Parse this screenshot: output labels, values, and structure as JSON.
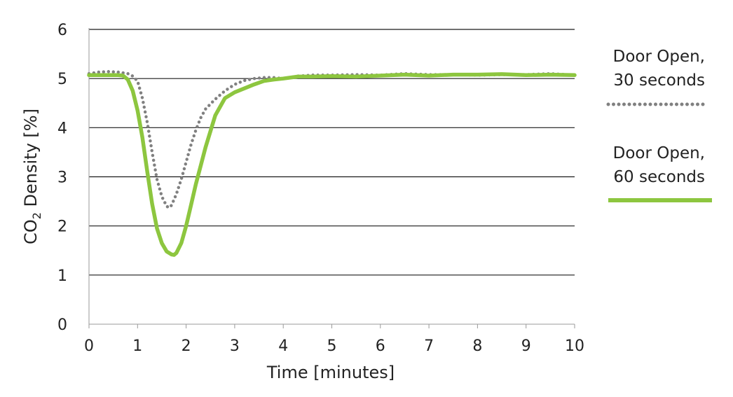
{
  "chart_data": {
    "type": "line",
    "title": "",
    "xlabel": "Time [minutes]",
    "ylabel": {
      "prefix": "CO",
      "subscript": "2",
      "suffix": " Density [%]"
    },
    "xlim": [
      0,
      10
    ],
    "ylim": [
      0,
      6
    ],
    "x_ticks": [
      "0",
      "1",
      "2",
      "3",
      "4",
      "5",
      "6",
      "7",
      "8",
      "9",
      "10"
    ],
    "y_ticks": [
      "0",
      "1",
      "2",
      "3",
      "4",
      "5",
      "6"
    ],
    "grid": "horizontal",
    "legend_position": "right",
    "series": [
      {
        "name_lines": [
          "Door Open,",
          "30 seconds"
        ],
        "color": "#808080",
        "style": "dotted",
        "x": [
          0,
          0.2,
          0.4,
          0.6,
          0.8,
          0.9,
          1.0,
          1.1,
          1.2,
          1.3,
          1.4,
          1.5,
          1.6,
          1.65,
          1.7,
          1.8,
          1.9,
          2.0,
          2.1,
          2.2,
          2.3,
          2.4,
          2.6,
          2.8,
          3.0,
          3.2,
          3.4,
          3.6,
          3.8,
          4.0,
          4.3,
          4.6,
          5.0,
          5.5,
          6.0,
          6.5,
          7.0,
          7.5,
          8.0,
          8.5,
          9.0,
          9.5,
          10.0
        ],
        "y": [
          5.1,
          5.13,
          5.14,
          5.13,
          5.1,
          5.05,
          4.95,
          4.6,
          4.1,
          3.5,
          2.95,
          2.6,
          2.4,
          2.37,
          2.42,
          2.65,
          2.95,
          3.3,
          3.65,
          3.95,
          4.2,
          4.38,
          4.58,
          4.75,
          4.88,
          4.96,
          5.0,
          5.02,
          5.02,
          5.0,
          5.05,
          5.07,
          5.07,
          5.08,
          5.07,
          5.1,
          5.08,
          5.08,
          5.07,
          5.08,
          5.08,
          5.1,
          5.07
        ]
      },
      {
        "name_lines": [
          "Door Open,",
          "60 seconds"
        ],
        "color": "#8dc63f",
        "style": "solid",
        "x": [
          0,
          0.2,
          0.4,
          0.6,
          0.7,
          0.8,
          0.9,
          1.0,
          1.1,
          1.2,
          1.3,
          1.4,
          1.5,
          1.6,
          1.7,
          1.75,
          1.8,
          1.9,
          2.0,
          2.1,
          2.2,
          2.4,
          2.6,
          2.8,
          3.0,
          3.2,
          3.4,
          3.6,
          3.8,
          4.0,
          4.3,
          4.6,
          5.0,
          5.5,
          6.0,
          6.5,
          7.0,
          7.5,
          8.0,
          8.5,
          9.0,
          9.5,
          10.0
        ],
        "y": [
          5.07,
          5.07,
          5.07,
          5.07,
          5.06,
          4.98,
          4.75,
          4.35,
          3.8,
          3.1,
          2.45,
          1.95,
          1.65,
          1.48,
          1.42,
          1.41,
          1.45,
          1.65,
          2.0,
          2.42,
          2.85,
          3.6,
          4.25,
          4.6,
          4.72,
          4.8,
          4.88,
          4.95,
          4.98,
          5.0,
          5.04,
          5.04,
          5.05,
          5.04,
          5.06,
          5.08,
          5.06,
          5.08,
          5.08,
          5.09,
          5.07,
          5.08,
          5.07
        ]
      }
    ]
  }
}
